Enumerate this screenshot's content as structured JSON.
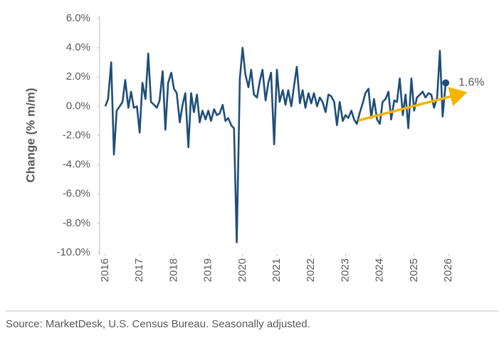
{
  "chart_data": {
    "type": "line",
    "y_label": "Change (% m/m)",
    "source": "Source: MarketDesk, U.S. Census Bureau. Seasonally adjusted.",
    "xlim": [
      2015.83,
      2026.6
    ],
    "xticks": [
      2016,
      2017,
      2018,
      2019,
      2020,
      2021,
      2022,
      2023,
      2024,
      2025,
      2026
    ],
    "ylim": [
      -10,
      6
    ],
    "yticks": [
      {
        "value": 6,
        "label": "6.0%"
      },
      {
        "value": 4,
        "label": "4.0%"
      },
      {
        "value": 2,
        "label": "2.0%"
      },
      {
        "value": 0,
        "label": "0.0%"
      },
      {
        "value": -2,
        "label": "-2.0%"
      },
      {
        "value": -4,
        "label": "-4.0%"
      },
      {
        "value": -6,
        "label": "-6.0%"
      },
      {
        "value": -8,
        "label": "-8.0%"
      },
      {
        "value": -10,
        "label": "-10.0%"
      }
    ],
    "x": [
      2016,
      2016.08,
      2016.17,
      2016.25,
      2016.33,
      2016.42,
      2016.5,
      2016.58,
      2016.67,
      2016.75,
      2016.83,
      2016.92,
      2017,
      2017.08,
      2017.17,
      2017.25,
      2017.33,
      2017.42,
      2017.5,
      2017.58,
      2017.67,
      2017.75,
      2017.83,
      2017.92,
      2018,
      2018.08,
      2018.17,
      2018.25,
      2018.33,
      2018.42,
      2018.5,
      2018.58,
      2018.67,
      2018.75,
      2018.83,
      2018.92,
      2019,
      2019.08,
      2019.17,
      2019.25,
      2019.33,
      2019.42,
      2019.5,
      2019.58,
      2019.67,
      2019.75,
      2019.83,
      2019.92,
      2020,
      2020.08,
      2020.17,
      2020.25,
      2020.33,
      2020.42,
      2020.5,
      2020.58,
      2020.67,
      2020.75,
      2020.83,
      2020.92,
      2021,
      2021.08,
      2021.17,
      2021.25,
      2021.33,
      2021.42,
      2021.5,
      2021.58,
      2021.67,
      2021.75,
      2021.83,
      2021.92,
      2022,
      2022.08,
      2022.17,
      2022.25,
      2022.33,
      2022.42,
      2022.5,
      2022.58,
      2022.67,
      2022.75,
      2022.83,
      2022.92,
      2023,
      2023.08,
      2023.17,
      2023.25,
      2023.33,
      2023.42,
      2023.5,
      2023.58,
      2023.67,
      2023.75,
      2023.83,
      2023.92,
      2024,
      2024.08,
      2024.17,
      2024.25,
      2024.33,
      2024.42,
      2024.5,
      2024.58,
      2024.67,
      2024.75,
      2024.83,
      2024.92,
      2025,
      2025.08,
      2025.17,
      2025.25,
      2025.33,
      2025.42,
      2025.5,
      2025.58,
      2025.67,
      2025.75,
      2025.83,
      2025.92
    ],
    "series": [
      {
        "color": "#1f4e79",
        "values": [
          0,
          0.5,
          3.0,
          -3.3,
          -0.3,
          0,
          0.3,
          1.8,
          -0.1,
          1.0,
          -0.1,
          0,
          -1.8,
          1.6,
          0.5,
          3.6,
          0.3,
          0.1,
          -0.1,
          0.4,
          2.4,
          -1.6,
          1.6,
          2.3,
          1.2,
          0.9,
          -1.1,
          0.1,
          0.9,
          -2.8,
          0.9,
          -0.4,
          0.8,
          -1.1,
          -0.3,
          -0.9,
          -0.3,
          -1.0,
          -0.2,
          -0.6,
          -0.5,
          0.1,
          -1.0,
          -0.8,
          -1.3,
          -1.5,
          -9.3,
          1.9,
          4.0,
          2.2,
          1.3,
          2.5,
          0.8,
          0.6,
          1.7,
          2.5,
          0.4,
          1.6,
          2.3,
          -2.6,
          2.5,
          0.3,
          1.1,
          0.1,
          1.1,
          0.0,
          1.4,
          2.7,
          0.2,
          1.1,
          -0.1,
          0.9,
          0.2,
          0.9,
          0.0,
          0.6,
          0.3,
          -0.4,
          0.8,
          0.7,
          0.3,
          -1.3,
          0.3,
          -1.0,
          -0.6,
          -0.8,
          -0.3,
          -0.9,
          -1.2,
          -0.4,
          0.2,
          0.9,
          1.2,
          -0.8,
          0.5,
          -0.9,
          -1.2,
          0.3,
          0.5,
          1.0,
          -0.9,
          0.4,
          0.3,
          1.9,
          -0.6,
          0.8,
          -1.5,
          1.9,
          -0.3,
          0.6,
          0.8,
          1.0,
          0.6,
          0.9,
          0.8,
          -0.1,
          0.6,
          3.8,
          -0.7,
          1.6
        ],
        "end_label": "1.6%"
      }
    ],
    "trend": {
      "color": "#f5b400",
      "x": [
        2023.37,
        2026.41
      ],
      "values": [
        -0.97,
        0.88
      ]
    }
  }
}
